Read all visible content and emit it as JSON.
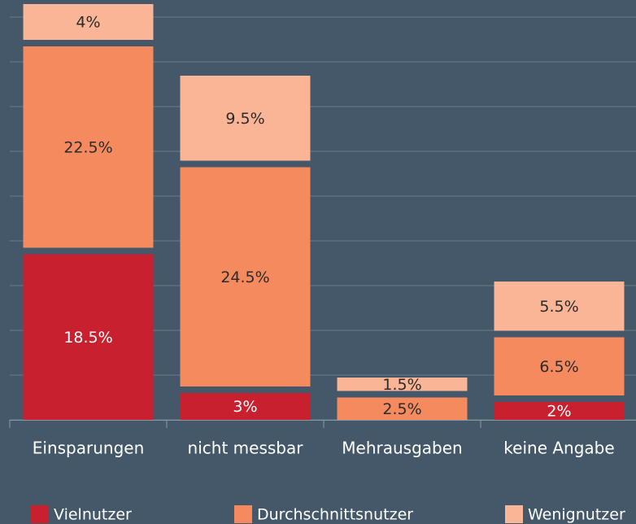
{
  "chart_data": {
    "type": "stacked_bar",
    "categories": [
      "Einsparungen",
      "nicht messbar",
      "Mehrausgaben",
      "keine Angabe"
    ],
    "series": [
      {
        "name": "Vielnutzer",
        "color": "#c8202f",
        "values": [
          18.5,
          3,
          0,
          2
        ],
        "value_labels": [
          "18.5%",
          "3%",
          null,
          "2%"
        ]
      },
      {
        "name": "Durchschnittsnutzer",
        "color": "#f58a5f",
        "values": [
          22.5,
          24.5,
          2.5,
          6.5
        ],
        "value_labels": [
          "22.5%",
          "24.5%",
          "2.5%",
          "6.5%"
        ]
      },
      {
        "name": "Wenignutzer",
        "color": "#f9b595",
        "values": [
          4,
          9.5,
          1.5,
          5.5
        ],
        "value_labels": [
          "4%",
          "9.5%",
          "1.5%",
          "5.5%"
        ]
      }
    ],
    "ylim": [
      0,
      45
    ],
    "yticks": [
      0,
      5,
      10,
      15,
      20,
      25,
      30,
      35,
      40,
      45
    ],
    "grid": true,
    "legend": "bottom"
  }
}
